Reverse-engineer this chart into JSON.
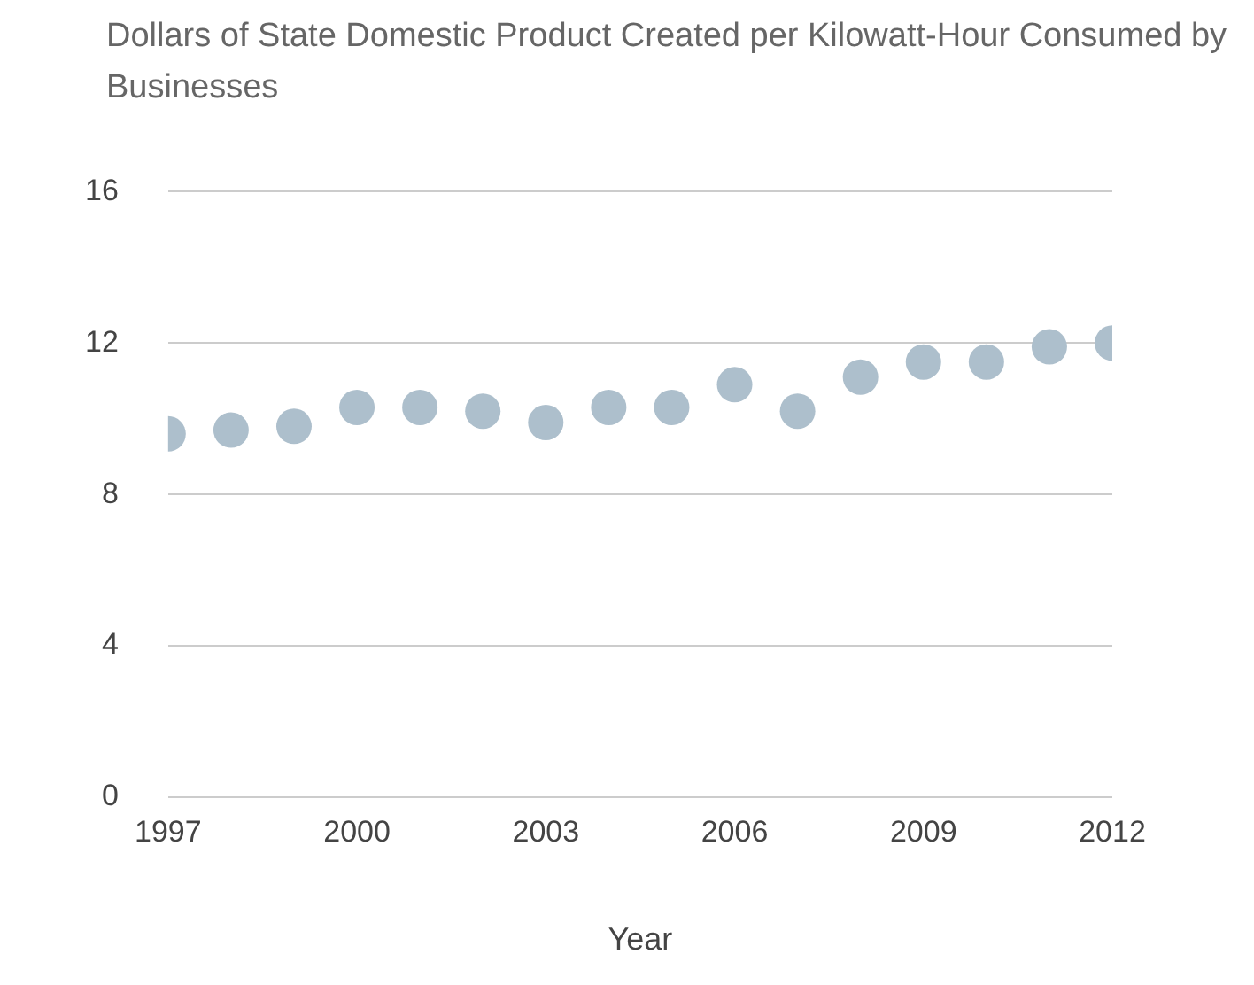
{
  "chart_data": {
    "type": "scatter",
    "title": "Dollars of State Domestic Product Created per Kilowatt-Hour Consumed by Businesses",
    "xlabel": "Year",
    "x": [
      1997,
      1998,
      1999,
      2000,
      2001,
      2002,
      2003,
      2004,
      2005,
      2006,
      2007,
      2008,
      2009,
      2010,
      2011,
      2012
    ],
    "series": [
      {
        "color": "#adbfcc",
        "values": [
          9.6,
          9.7,
          9.8,
          10.3,
          10.3,
          10.2,
          9.9,
          10.3,
          10.3,
          10.9,
          10.2,
          11.1,
          11.5,
          11.5,
          11.9,
          12.0
        ]
      }
    ],
    "xlim": [
      1997,
      2012
    ],
    "xticks": [
      1997,
      2000,
      2003,
      2006,
      2009,
      2012
    ],
    "ylim": [
      0,
      16
    ],
    "yticks": [
      0,
      4,
      8,
      12,
      16
    ],
    "grid": "y",
    "legend": false,
    "marker": "circle"
  }
}
